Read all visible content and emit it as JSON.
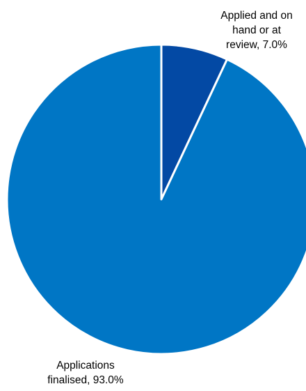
{
  "chart_data": {
    "type": "pie",
    "start_angle": "12 o'clock",
    "direction": "clockwise",
    "legend": "none",
    "slices": [
      {
        "label": "Applied and on hand or at review",
        "value": 7.0,
        "label_text": [
          "Applied and on",
          "hand or at",
          "review, 7.0%"
        ],
        "color": "#0349A4"
      },
      {
        "label": "Applications finalised",
        "value": 93.0,
        "label_text": [
          "Applications",
          "finalised, 93.0%"
        ],
        "color": "#0076C5"
      }
    ]
  }
}
